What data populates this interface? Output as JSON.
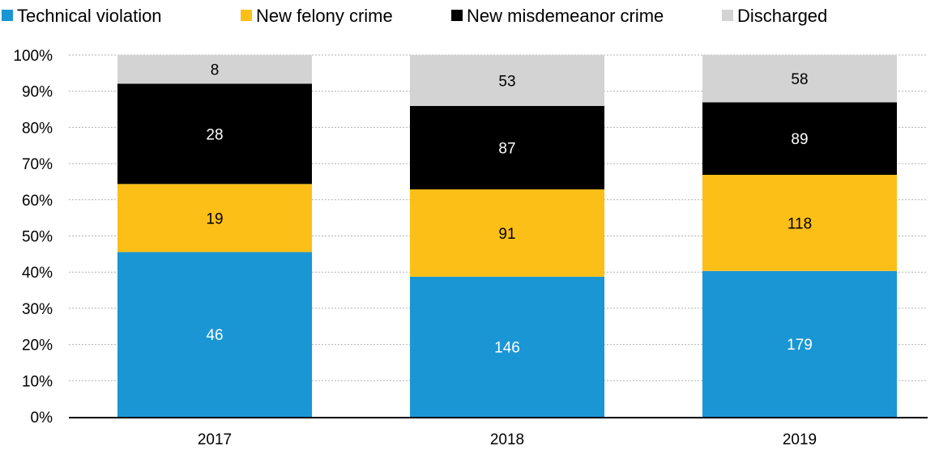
{
  "chart_data": {
    "type": "bar",
    "stacked": true,
    "normalized": true,
    "categories": [
      "2017",
      "2018",
      "2019"
    ],
    "series": [
      {
        "name": "Technical violation",
        "values": [
          46,
          146,
          179
        ],
        "color": "#1a96d4",
        "label_color": "#ffffff"
      },
      {
        "name": "New felony crime",
        "values": [
          19,
          91,
          118
        ],
        "color": "#fcbf17",
        "label_color": "#000000"
      },
      {
        "name": "New misdemeanor crime",
        "values": [
          28,
          87,
          89
        ],
        "color": "#000000",
        "label_color": "#ffffff"
      },
      {
        "name": "Discharged",
        "values": [
          8,
          53,
          58
        ],
        "color": "#d3d3d3",
        "label_color": "#000000"
      }
    ],
    "y_ticks": [
      "0%",
      "10%",
      "20%",
      "30%",
      "40%",
      "50%",
      "60%",
      "70%",
      "80%",
      "90%",
      "100%"
    ],
    "ylim": [
      0,
      100
    ],
    "grid": true,
    "legend_position": "top"
  }
}
